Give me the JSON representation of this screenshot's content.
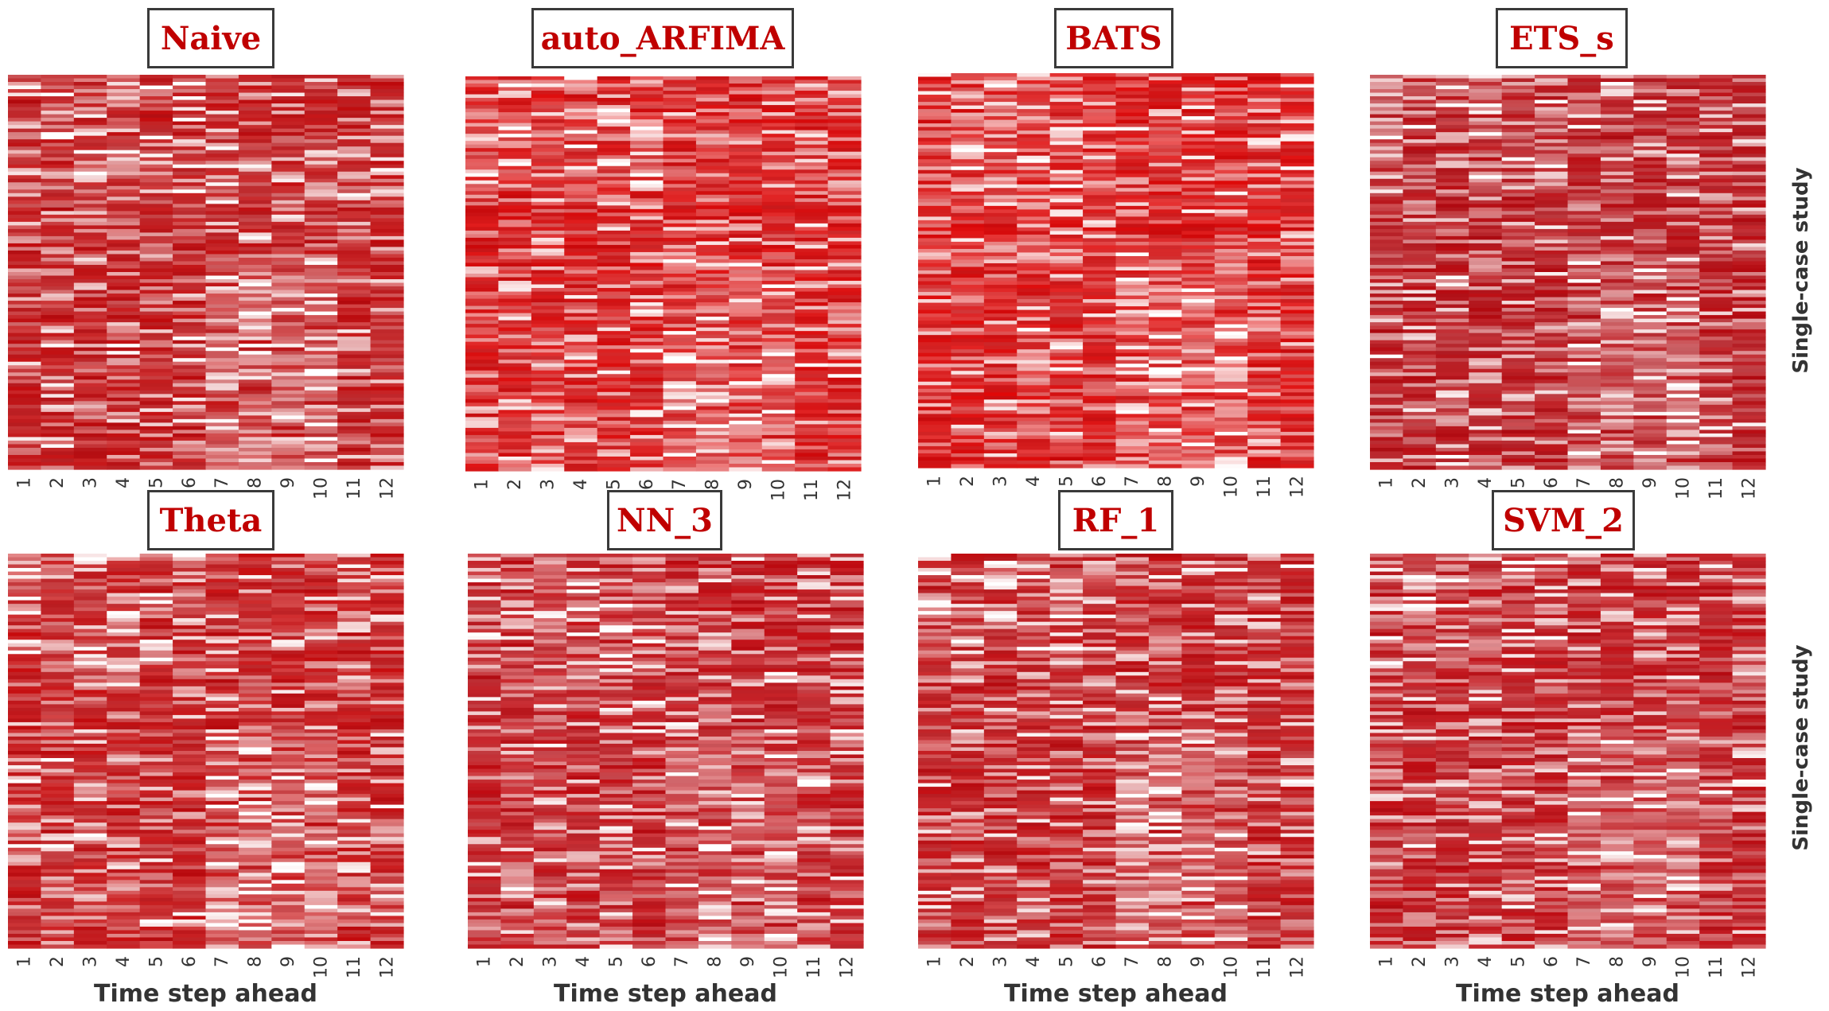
{
  "figure": {
    "side_label": "Single-case study"
  },
  "chart_data": [
    {
      "type": "heatmap",
      "title": "Naive",
      "xlabel": "Time step ahead",
      "ylabel": "Single-case study",
      "x_ticks": [
        "1",
        "2",
        "3",
        "4",
        "5",
        "6",
        "7",
        "8",
        "9",
        "10",
        "11",
        "12"
      ],
      "rows": 110,
      "color_scale": {
        "low": "#c40a0c",
        "high": "#ffffff"
      },
      "seed": 11
    },
    {
      "type": "heatmap",
      "title": "auto_ARFIMA",
      "xlabel": "Time step ahead",
      "ylabel": "Single-case study",
      "x_ticks": [
        "1",
        "2",
        "3",
        "4",
        "5",
        "6",
        "7",
        "8",
        "9",
        "10",
        "11",
        "12"
      ],
      "rows": 110,
      "color_scale": {
        "low": "#de0a0a",
        "high": "#ffffff"
      },
      "seed": 23
    },
    {
      "type": "heatmap",
      "title": "BATS",
      "xlabel": "Time step ahead",
      "ylabel": "Single-case study",
      "x_ticks": [
        "1",
        "2",
        "3",
        "4",
        "5",
        "6",
        "7",
        "8",
        "9",
        "10",
        "11",
        "12"
      ],
      "rows": 110,
      "color_scale": {
        "low": "#e00808",
        "high": "#ffffff"
      },
      "seed": 37
    },
    {
      "type": "heatmap",
      "title": "ETS_s",
      "xlabel": "Time step ahead",
      "ylabel": "Single-case study",
      "x_ticks": [
        "1",
        "2",
        "3",
        "4",
        "5",
        "6",
        "7",
        "8",
        "9",
        "10",
        "11",
        "12"
      ],
      "rows": 110,
      "color_scale": {
        "low": "#bb0a10",
        "high": "#ffffff"
      },
      "seed": 41
    },
    {
      "type": "heatmap",
      "title": "Theta",
      "xlabel": "Time step ahead",
      "ylabel": "Single-case study",
      "x_ticks": [
        "1",
        "2",
        "3",
        "4",
        "5",
        "6",
        "7",
        "8",
        "9",
        "10",
        "11",
        "12"
      ],
      "rows": 110,
      "color_scale": {
        "low": "#c80a0c",
        "high": "#ffffff"
      },
      "seed": 53
    },
    {
      "type": "heatmap",
      "title": "NN_3",
      "xlabel": "Time step ahead",
      "ylabel": "Single-case study",
      "x_ticks": [
        "1",
        "2",
        "3",
        "4",
        "5",
        "6",
        "7",
        "8",
        "9",
        "10",
        "11",
        "12"
      ],
      "rows": 110,
      "color_scale": {
        "low": "#c40a10",
        "high": "#ffffff"
      },
      "seed": 67
    },
    {
      "type": "heatmap",
      "title": "RF_1",
      "xlabel": "Time step ahead",
      "ylabel": "Single-case study",
      "x_ticks": [
        "1",
        "2",
        "3",
        "4",
        "5",
        "6",
        "7",
        "8",
        "9",
        "10",
        "11",
        "12"
      ],
      "rows": 110,
      "color_scale": {
        "low": "#c40a0e",
        "high": "#ffffff"
      },
      "seed": 79
    },
    {
      "type": "heatmap",
      "title": "SVM_2",
      "xlabel": "Time step ahead",
      "ylabel": "Single-case study",
      "x_ticks": [
        "1",
        "2",
        "3",
        "4",
        "5",
        "6",
        "7",
        "8",
        "9",
        "10",
        "11",
        "12"
      ],
      "rows": 110,
      "color_scale": {
        "low": "#c20a10",
        "high": "#ffffff"
      },
      "seed": 97
    }
  ]
}
